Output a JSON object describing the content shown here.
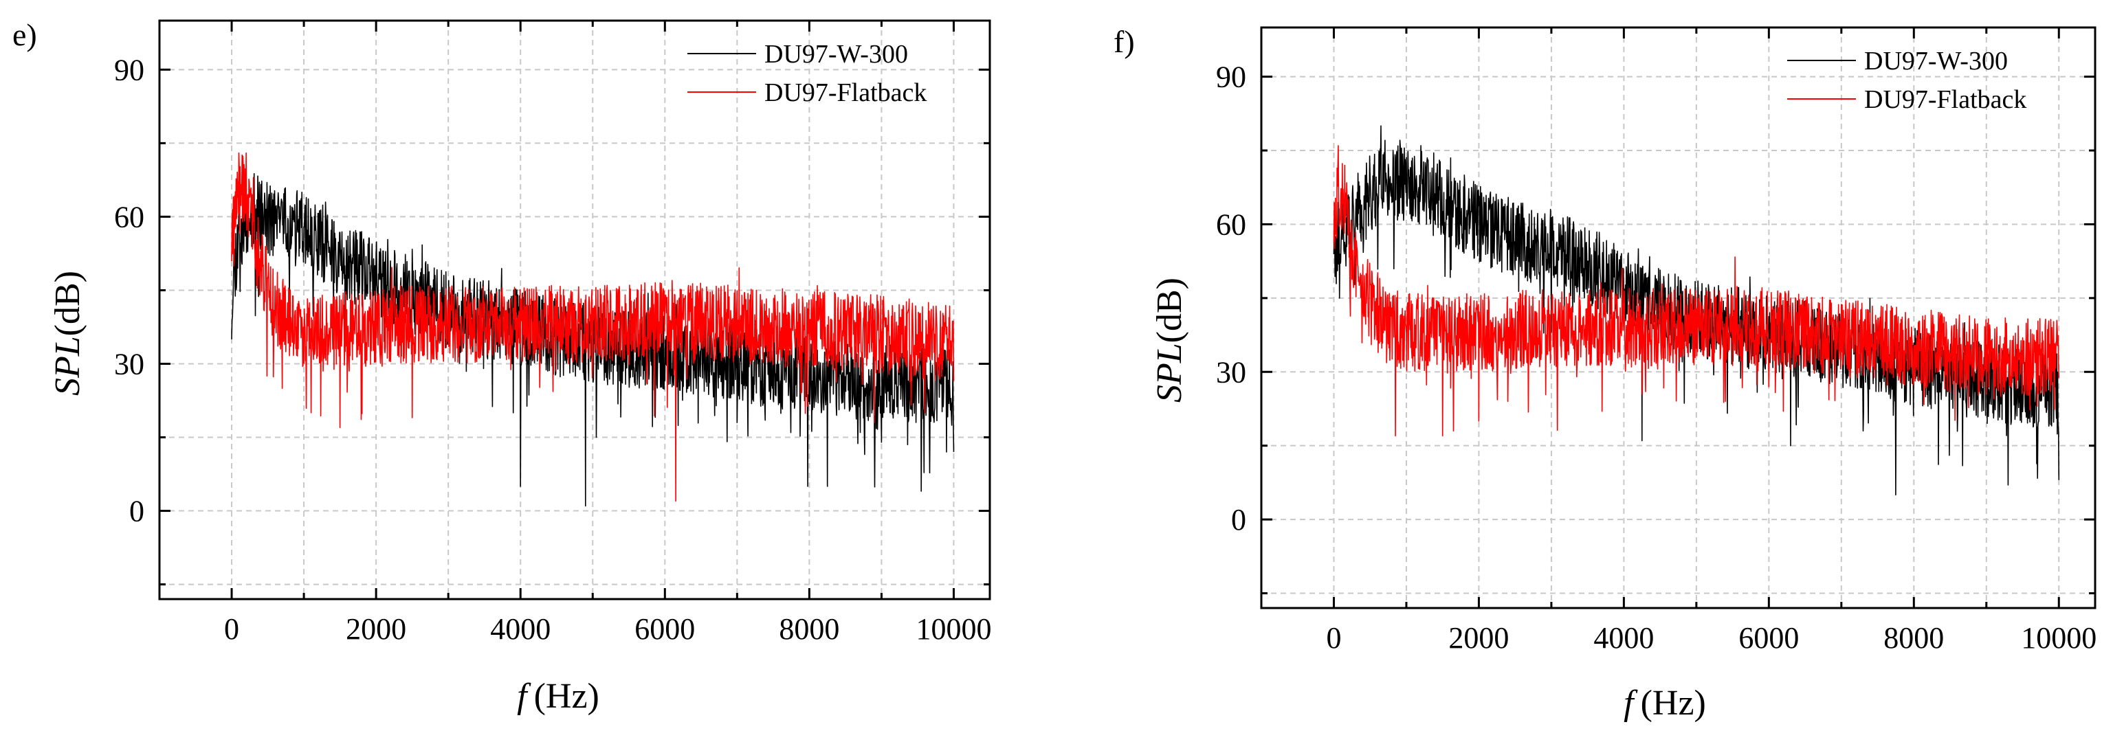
{
  "chart_data": [
    {
      "panel": "e)",
      "type": "line",
      "xlabel_italic": "f",
      "xlabel_unit": "(Hz)",
      "ylabel_italic": "SPL",
      "ylabel_unit": "(dB)",
      "xlim": [
        -1000,
        10500
      ],
      "ylim": [
        -18,
        100
      ],
      "xticks": [
        0,
        2000,
        4000,
        6000,
        8000,
        10000
      ],
      "yticks": [
        0,
        30,
        60,
        90
      ],
      "grid": true,
      "legend_position": "top-right",
      "series": [
        {
          "name": "DU97-W-300",
          "color": "#000000",
          "trend": [
            [
              0,
              45
            ],
            [
              100,
              57
            ],
            [
              300,
              61
            ],
            [
              600,
              59
            ],
            [
              1000,
              57
            ],
            [
              1500,
              52
            ],
            [
              2000,
              47
            ],
            [
              2500,
              44
            ],
            [
              3000,
              41
            ],
            [
              4000,
              37
            ],
            [
              5000,
              34
            ],
            [
              6000,
              32
            ],
            [
              7000,
              30
            ],
            [
              8000,
              28
            ],
            [
              9000,
              26
            ],
            [
              10000,
              25
            ]
          ],
          "spread": 5,
          "dips": [
            [
              0,
              35
            ],
            [
              3900,
              20
            ],
            [
              4000,
              5
            ],
            [
              4900,
              1
            ],
            [
              5050,
              15
            ],
            [
              7000,
              18
            ],
            [
              7980,
              5
            ],
            [
              8250,
              5
            ],
            [
              9000,
              14
            ],
            [
              9550,
              4
            ],
            [
              9900,
              12
            ],
            [
              10000,
              12
            ]
          ],
          "peaks": [
            [
              200,
              64
            ],
            [
              700,
              63
            ],
            [
              1300,
              63
            ],
            [
              2100,
              53
            ],
            [
              3200,
              47
            ]
          ],
          "seed": 11
        },
        {
          "name": "DU97-Flatback",
          "color": "#ff0000",
          "trend": [
            [
              0,
              55
            ],
            [
              80,
              62
            ],
            [
              150,
              66
            ],
            [
              250,
              60
            ],
            [
              400,
              50
            ],
            [
              600,
              42
            ],
            [
              800,
              38
            ],
            [
              1200,
              36
            ],
            [
              2000,
              38
            ],
            [
              3000,
              38
            ],
            [
              4000,
              38
            ],
            [
              5000,
              38
            ],
            [
              6000,
              39
            ],
            [
              7000,
              38
            ],
            [
              8000,
              37
            ],
            [
              9000,
              36
            ],
            [
              10000,
              34
            ]
          ],
          "spread": 5,
          "dips": [
            [
              700,
              25
            ],
            [
              1100,
              20
            ],
            [
              1500,
              17
            ],
            [
              2500,
              19
            ],
            [
              6150,
              2
            ],
            [
              8900,
              18
            ],
            [
              9600,
              20
            ]
          ],
          "peaks": [
            [
              100,
              73
            ],
            [
              200,
              73
            ],
            [
              300,
              68
            ],
            [
              6100,
              47
            ],
            [
              5200,
              46
            ]
          ],
          "seed": 29
        }
      ]
    },
    {
      "panel": "f)",
      "type": "line",
      "xlabel_italic": "f",
      "xlabel_unit": "(Hz)",
      "ylabel_italic": "SPL",
      "ylabel_unit": "(dB)",
      "xlim": [
        -1000,
        10500
      ],
      "ylim": [
        -18,
        100
      ],
      "xticks": [
        0,
        2000,
        4000,
        6000,
        8000,
        10000
      ],
      "yticks": [
        0,
        30,
        60,
        90
      ],
      "grid": true,
      "legend_position": "top-right",
      "series": [
        {
          "name": "DU97-W-300",
          "color": "#000000",
          "trend": [
            [
              0,
              55
            ],
            [
              200,
              60
            ],
            [
              500,
              66
            ],
            [
              700,
              70
            ],
            [
              1000,
              68
            ],
            [
              1300,
              68
            ],
            [
              1600,
              64
            ],
            [
              2000,
              60
            ],
            [
              2500,
              57
            ],
            [
              3000,
              55
            ],
            [
              3500,
              52
            ],
            [
              4000,
              47
            ],
            [
              4500,
              43
            ],
            [
              5000,
              41
            ],
            [
              6000,
              38
            ],
            [
              7000,
              35
            ],
            [
              8000,
              31
            ],
            [
              9000,
              28
            ],
            [
              10000,
              26
            ]
          ],
          "spread": 5,
          "dips": [
            [
              80,
              45
            ],
            [
              3000,
              38
            ],
            [
              4250,
              16
            ],
            [
              6300,
              15
            ],
            [
              7300,
              18
            ],
            [
              7750,
              5
            ],
            [
              9300,
              7
            ],
            [
              10000,
              8
            ]
          ],
          "peaks": [
            [
              650,
              80
            ],
            [
              1200,
              76
            ],
            [
              1800,
              70
            ],
            [
              2600,
              63
            ],
            [
              4200,
              55
            ],
            [
              8700,
              40
            ]
          ],
          "seed": 47
        },
        {
          "name": "DU97-Flatback",
          "color": "#ff0000",
          "trend": [
            [
              0,
              60
            ],
            [
              80,
              68
            ],
            [
              180,
              62
            ],
            [
              300,
              52
            ],
            [
              500,
              44
            ],
            [
              700,
              40
            ],
            [
              1000,
              38
            ],
            [
              2000,
              38
            ],
            [
              3000,
              39
            ],
            [
              4000,
              39
            ],
            [
              5000,
              39
            ],
            [
              6000,
              39
            ],
            [
              7000,
              37
            ],
            [
              8000,
              35
            ],
            [
              9000,
              33
            ],
            [
              10000,
              33
            ]
          ],
          "spread": 5,
          "dips": [
            [
              850,
              17
            ],
            [
              1500,
              17
            ],
            [
              1650,
              18
            ],
            [
              2000,
              20
            ],
            [
              2400,
              24
            ],
            [
              3700,
              22
            ],
            [
              4300,
              26
            ],
            [
              5400,
              24
            ],
            [
              6200,
              22
            ]
          ],
          "peaks": [
            [
              60,
              76
            ],
            [
              150,
              72
            ],
            [
              4600,
              45
            ],
            [
              6300,
              45
            ]
          ],
          "seed": 83
        }
      ]
    }
  ]
}
